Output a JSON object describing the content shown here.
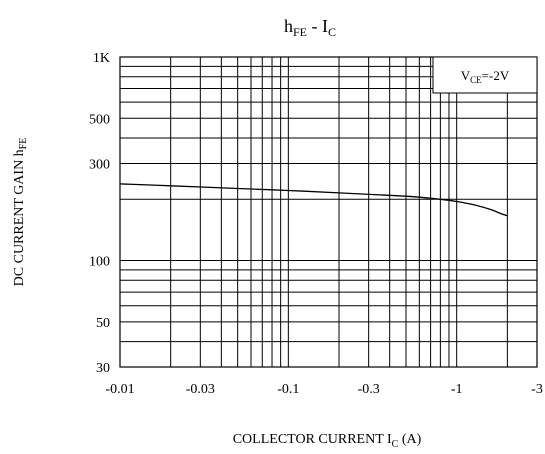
{
  "chart_data": {
    "type": "line",
    "title": {
      "main": "h",
      "main_sub": "FE",
      "mid": " - I",
      "mid_sub": "C"
    },
    "xlabel": {
      "main": "COLLECTOR CURRENT I",
      "sub": "C",
      "tail": "  (A)"
    },
    "ylabel": {
      "main": "DC CURRENT GAIN h",
      "sub": "FE"
    },
    "x_scale": "log",
    "y_scale": "log",
    "xlim": [
      0.01,
      3
    ],
    "ylim": [
      30,
      1000
    ],
    "x_ticks": [
      {
        "value": 0.01,
        "label": "-0.01"
      },
      {
        "value": 0.03,
        "label": "-0.03"
      },
      {
        "value": 0.1,
        "label": "-0.1"
      },
      {
        "value": 0.3,
        "label": "-0.3"
      },
      {
        "value": 1,
        "label": "-1"
      },
      {
        "value": 3,
        "label": "-3"
      }
    ],
    "y_ticks": [
      {
        "value": 30,
        "label": "30"
      },
      {
        "value": 50,
        "label": "50"
      },
      {
        "value": 100,
        "label": "100"
      },
      {
        "value": 300,
        "label": "300"
      },
      {
        "value": 500,
        "label": "500"
      },
      {
        "value": 1000,
        "label": "1K"
      }
    ],
    "grid": true,
    "annotation": {
      "main": "V",
      "sub": "CE",
      "tail": "=-2V"
    },
    "series": [
      {
        "x": [
          0.01,
          0.02,
          0.05,
          0.1,
          0.2,
          0.5,
          0.8,
          1.0,
          1.3,
          1.6,
          1.8,
          2.0
        ],
        "y": [
          238,
          233,
          226,
          221,
          215,
          207,
          200,
          195,
          187,
          178,
          171,
          166
        ]
      }
    ]
  }
}
